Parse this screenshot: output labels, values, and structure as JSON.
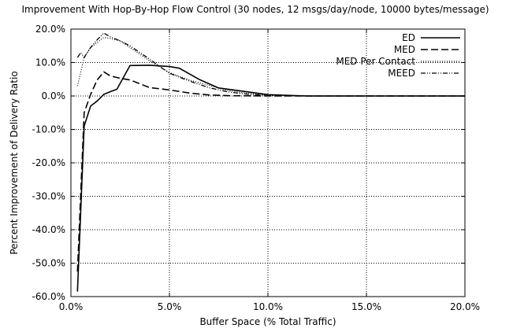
{
  "chart_data": {
    "type": "line",
    "title": "Improvement With Hop-By-Hop Flow Control (30 nodes, 12 msgs/day/node, 10000 bytes/message)",
    "xlabel": "Buffer Space (% Total Traffic)",
    "ylabel": "Percent Improvement of Delivery Ratio",
    "xlim": [
      0,
      20
    ],
    "ylim": [
      -60,
      20
    ],
    "x_ticks": [
      0,
      5,
      10,
      15,
      20
    ],
    "x_tick_labels": [
      "0.0%",
      "5.0%",
      "10.0%",
      "15.0%",
      "20.0%"
    ],
    "y_ticks": [
      20,
      10,
      0,
      -10,
      -20,
      -30,
      -40,
      -50,
      -60
    ],
    "y_tick_labels": [
      "20.0%",
      "10.0%",
      "0.0%",
      "-10.0%",
      "-20.0%",
      "-30.0%",
      "-40.0%",
      "-50.0%",
      "-60.0%"
    ],
    "grid": true,
    "legend_position": "top-right",
    "series": [
      {
        "name": "ED",
        "style": "solid",
        "x": [
          0.33,
          0.67,
          1.0,
          1.33,
          1.67,
          2.0,
          2.33,
          3.0,
          4.0,
          5.0,
          5.5,
          6.5,
          7.5,
          8.5,
          9.5,
          10.0,
          11.0,
          12.0,
          15.0,
          20.0
        ],
        "y": [
          -58.5,
          -9,
          -3,
          -1.5,
          0.5,
          1.3,
          2.0,
          9.1,
          9.2,
          8.8,
          8.3,
          5.0,
          2.4,
          1.6,
          0.8,
          0.4,
          0.2,
          0.0,
          0.0,
          0.0
        ]
      },
      {
        "name": "MED",
        "style": "dashed",
        "x": [
          0.33,
          0.67,
          1.0,
          1.33,
          1.67,
          2.0,
          2.5,
          3.0,
          4.0,
          5.0,
          6.0,
          7.0,
          8.0,
          10.0,
          12.0,
          15.0,
          20.0
        ],
        "y": [
          -52.5,
          -5,
          0.5,
          4.8,
          7.2,
          6.0,
          5.3,
          4.8,
          2.5,
          1.8,
          0.9,
          0.3,
          0.1,
          0.0,
          0.0,
          0.0,
          0.0
        ]
      },
      {
        "name": "MED Per Contact",
        "style": "dotted",
        "x": [
          0.33,
          0.67,
          1.0,
          1.33,
          1.67,
          2.0,
          2.5,
          3.0,
          4.0,
          5.0,
          6.0,
          7.0,
          8.0,
          9.0,
          10.0,
          12.0,
          15.0,
          20.0
        ],
        "y": [
          3,
          11.5,
          14.5,
          16,
          17.5,
          17.2,
          16.5,
          14.5,
          10.5,
          7.0,
          4.8,
          3.2,
          1.6,
          0.8,
          0.3,
          0.0,
          0.0,
          0.0
        ]
      },
      {
        "name": "MEED",
        "style": "dashdotdot",
        "x": [
          0.33,
          0.5,
          0.67,
          1.0,
          1.33,
          1.67,
          2.0,
          2.5,
          3.0,
          4.0,
          5.0,
          6.0,
          7.0,
          8.0,
          9.0,
          10.0,
          12.0,
          15.0,
          20.0
        ],
        "y": [
          11.5,
          13,
          11.5,
          14.5,
          16.8,
          18.8,
          17.7,
          16.5,
          15.0,
          11.0,
          6.8,
          4.5,
          2.5,
          1.2,
          0.5,
          0.2,
          0.0,
          0.0,
          0.0
        ]
      }
    ]
  }
}
